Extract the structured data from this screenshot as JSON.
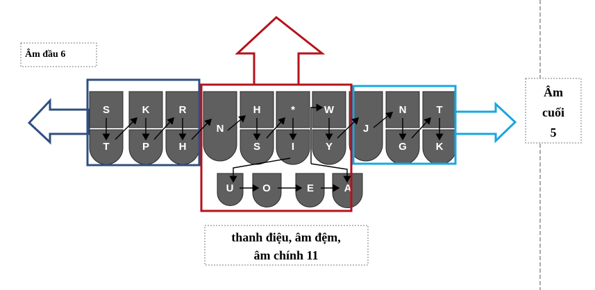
{
  "colors": {
    "key_fill": "#5f5f5f",
    "key_stroke": "#2a2a2a",
    "initial_box": "#2f4f7f",
    "middle_box": "#b5121b",
    "final_box": "#17a7e0",
    "arrow": "#000000"
  },
  "labels": {
    "initial": "Âm đầu 6",
    "middle_line1": "thanh điệu, âm đệm,",
    "middle_line2": "âm chính 11",
    "final_line1": "Âm",
    "final_line2": "cuối",
    "final_line3": "5"
  },
  "keys": {
    "S_top": "S",
    "K_top": "K",
    "R_top": "R",
    "T_bot": "T",
    "P_bot": "P",
    "H_bot": "H",
    "N_mid": "N",
    "H_top": "H",
    "star": "*",
    "W": "W",
    "S_bot": "S",
    "I_bot": "I",
    "Y_bot": "Y",
    "J": "J",
    "N_top": "N",
    "T_top": "T",
    "G_bot": "G",
    "K_bot": "K",
    "U": "U",
    "O": "O",
    "E": "E",
    "A": "A"
  }
}
